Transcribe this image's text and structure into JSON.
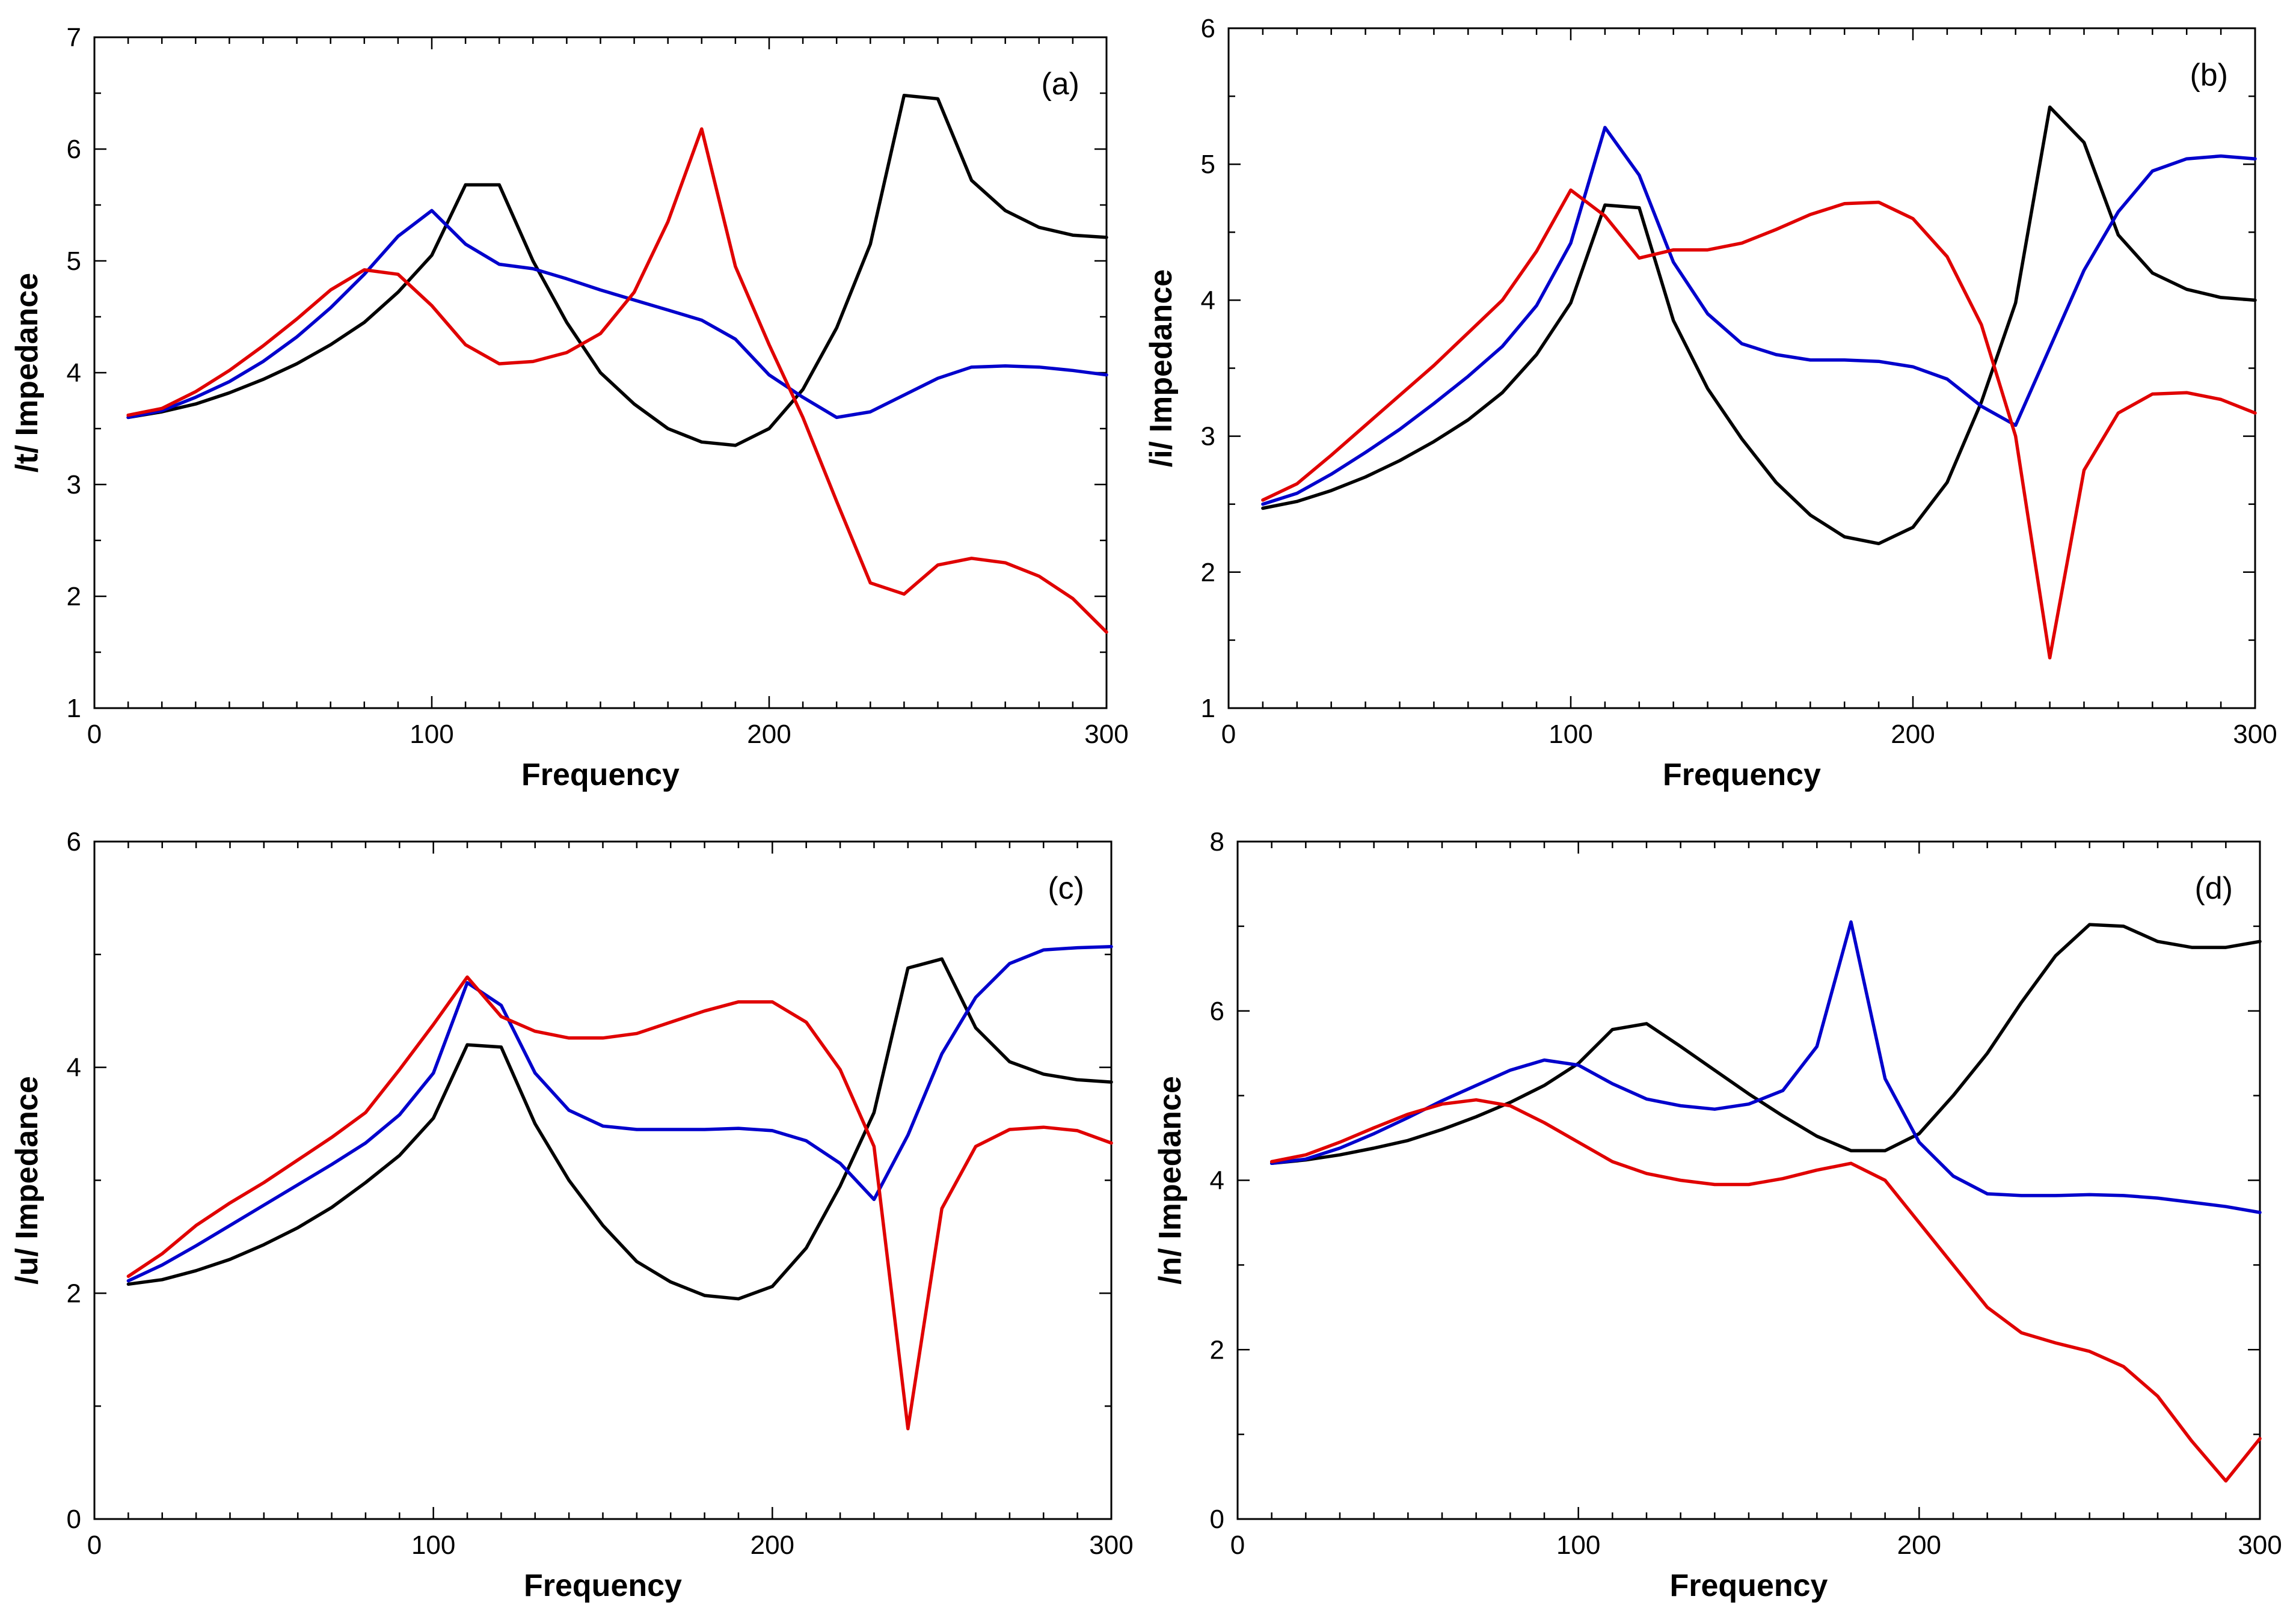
{
  "chart_data": [
    {
      "type": "line",
      "panel_label": "(a)",
      "xlabel": "Frequency",
      "ylabel": "/t/ Impedance",
      "xlim": [
        0,
        300
      ],
      "ylim": [
        1,
        7
      ],
      "xticks": [
        0,
        100,
        200,
        300
      ],
      "yticks": [
        1,
        2,
        3,
        4,
        5,
        6,
        7
      ],
      "x": [
        10,
        20,
        30,
        40,
        50,
        60,
        70,
        80,
        90,
        100,
        110,
        120,
        130,
        140,
        150,
        160,
        170,
        180,
        190,
        200,
        210,
        220,
        230,
        240,
        250,
        260,
        270,
        280,
        290,
        300
      ],
      "series": [
        {
          "name": "black",
          "color": "#000000",
          "values": [
            3.6,
            3.65,
            3.72,
            3.82,
            3.94,
            4.08,
            4.25,
            4.45,
            4.72,
            5.05,
            5.68,
            5.68,
            5.0,
            4.45,
            4.0,
            3.72,
            3.5,
            3.38,
            3.35,
            3.5,
            3.85,
            4.4,
            5.15,
            6.48,
            6.45,
            5.72,
            5.45,
            5.3,
            5.23,
            5.21
          ]
        },
        {
          "name": "blue",
          "color": "#0000CC",
          "values": [
            3.6,
            3.66,
            3.78,
            3.92,
            4.1,
            4.32,
            4.58,
            4.88,
            5.22,
            5.45,
            5.15,
            4.97,
            4.93,
            4.84,
            4.74,
            4.65,
            4.56,
            4.47,
            4.3,
            3.98,
            3.78,
            3.6,
            3.65,
            3.8,
            3.95,
            4.05,
            4.06,
            4.05,
            4.02,
            3.98
          ]
        },
        {
          "name": "red",
          "color": "#E00000",
          "values": [
            3.62,
            3.68,
            3.83,
            4.02,
            4.24,
            4.48,
            4.74,
            4.92,
            4.88,
            4.6,
            4.25,
            4.08,
            4.1,
            4.18,
            4.35,
            4.72,
            5.35,
            6.18,
            4.95,
            4.25,
            3.6,
            2.85,
            2.12,
            2.02,
            2.28,
            2.34,
            2.3,
            2.18,
            1.98,
            1.68
          ]
        }
      ]
    },
    {
      "type": "line",
      "panel_label": "(b)",
      "xlabel": "Frequency",
      "ylabel": "/i/ Impedance",
      "xlim": [
        0,
        300
      ],
      "ylim": [
        1,
        6
      ],
      "xticks": [
        0,
        100,
        200,
        300
      ],
      "yticks": [
        1,
        2,
        3,
        4,
        5,
        6
      ],
      "x": [
        10,
        20,
        30,
        40,
        50,
        60,
        70,
        80,
        90,
        100,
        110,
        120,
        130,
        140,
        150,
        160,
        170,
        180,
        190,
        200,
        210,
        220,
        230,
        240,
        250,
        260,
        270,
        280,
        290,
        300
      ],
      "series": [
        {
          "name": "black",
          "color": "#000000",
          "values": [
            2.47,
            2.52,
            2.6,
            2.7,
            2.82,
            2.96,
            3.12,
            3.32,
            3.6,
            3.98,
            4.7,
            4.68,
            3.85,
            3.35,
            2.98,
            2.66,
            2.42,
            2.26,
            2.21,
            2.33,
            2.66,
            3.25,
            3.98,
            5.42,
            5.16,
            4.48,
            4.2,
            4.08,
            4.02,
            4.0
          ]
        },
        {
          "name": "blue",
          "color": "#0000CC",
          "values": [
            2.5,
            2.58,
            2.72,
            2.88,
            3.05,
            3.24,
            3.44,
            3.66,
            3.96,
            4.42,
            5.27,
            4.92,
            4.28,
            3.9,
            3.68,
            3.6,
            3.56,
            3.56,
            3.55,
            3.51,
            3.42,
            3.22,
            3.08,
            3.65,
            4.22,
            4.65,
            4.95,
            5.04,
            5.06,
            5.04
          ]
        },
        {
          "name": "red",
          "color": "#E00000",
          "values": [
            2.53,
            2.65,
            2.86,
            3.08,
            3.3,
            3.52,
            3.76,
            4.0,
            4.36,
            4.81,
            4.62,
            4.31,
            4.37,
            4.37,
            4.42,
            4.52,
            4.63,
            4.71,
            4.72,
            4.6,
            4.32,
            3.82,
            3.0,
            1.37,
            2.75,
            3.17,
            3.31,
            3.32,
            3.27,
            3.17
          ]
        }
      ]
    },
    {
      "type": "line",
      "panel_label": "(c)",
      "xlabel": "Frequency",
      "ylabel": "/u/ Impedance",
      "xlim": [
        0,
        300
      ],
      "ylim": [
        0,
        6
      ],
      "xticks": [
        0,
        100,
        200,
        300
      ],
      "yticks": [
        0,
        2,
        4,
        6
      ],
      "x": [
        10,
        20,
        30,
        40,
        50,
        60,
        70,
        80,
        90,
        100,
        110,
        120,
        130,
        140,
        150,
        160,
        170,
        180,
        190,
        200,
        210,
        220,
        230,
        240,
        250,
        260,
        270,
        280,
        290,
        300
      ],
      "series": [
        {
          "name": "black",
          "color": "#000000",
          "values": [
            2.08,
            2.12,
            2.2,
            2.3,
            2.43,
            2.58,
            2.76,
            2.98,
            3.22,
            3.55,
            4.2,
            4.18,
            3.5,
            3.0,
            2.6,
            2.28,
            2.1,
            1.98,
            1.95,
            2.06,
            2.4,
            2.95,
            3.6,
            4.88,
            4.96,
            4.35,
            4.05,
            3.94,
            3.89,
            3.87
          ]
        },
        {
          "name": "blue",
          "color": "#0000CC",
          "values": [
            2.11,
            2.25,
            2.42,
            2.6,
            2.78,
            2.96,
            3.14,
            3.33,
            3.58,
            3.95,
            4.75,
            4.55,
            3.95,
            3.62,
            3.48,
            3.45,
            3.45,
            3.45,
            3.46,
            3.44,
            3.35,
            3.15,
            2.83,
            3.4,
            4.12,
            4.62,
            4.92,
            5.04,
            5.06,
            5.07
          ]
        },
        {
          "name": "red",
          "color": "#E00000",
          "values": [
            2.15,
            2.35,
            2.6,
            2.8,
            2.98,
            3.18,
            3.38,
            3.6,
            3.98,
            4.38,
            4.8,
            4.45,
            4.32,
            4.26,
            4.26,
            4.3,
            4.4,
            4.5,
            4.58,
            4.58,
            4.4,
            3.98,
            3.3,
            0.8,
            2.75,
            3.3,
            3.45,
            3.47,
            3.44,
            3.33
          ]
        }
      ]
    },
    {
      "type": "line",
      "panel_label": "(d)",
      "xlabel": "Frequency",
      "ylabel": "/n/ Impedance",
      "xlim": [
        0,
        300
      ],
      "ylim": [
        0,
        8
      ],
      "xticks": [
        0,
        100,
        200,
        300
      ],
      "yticks": [
        0,
        2,
        4,
        6,
        8
      ],
      "x": [
        10,
        20,
        30,
        40,
        50,
        60,
        70,
        80,
        90,
        100,
        110,
        120,
        130,
        140,
        150,
        160,
        170,
        180,
        190,
        200,
        210,
        220,
        230,
        240,
        250,
        260,
        270,
        280,
        290,
        300
      ],
      "series": [
        {
          "name": "black",
          "color": "#000000",
          "values": [
            4.2,
            4.24,
            4.3,
            4.38,
            4.47,
            4.6,
            4.75,
            4.92,
            5.12,
            5.38,
            5.78,
            5.85,
            5.58,
            5.3,
            5.02,
            4.76,
            4.52,
            4.35,
            4.35,
            4.55,
            5.0,
            5.5,
            6.1,
            6.65,
            7.02,
            7.0,
            6.82,
            6.75,
            6.75,
            6.82
          ]
        },
        {
          "name": "blue",
          "color": "#0000CC",
          "values": [
            4.2,
            4.25,
            4.38,
            4.55,
            4.74,
            4.94,
            5.12,
            5.3,
            5.42,
            5.36,
            5.14,
            4.96,
            4.88,
            4.84,
            4.9,
            5.06,
            5.58,
            7.05,
            5.2,
            4.45,
            4.05,
            3.84,
            3.82,
            3.82,
            3.83,
            3.82,
            3.79,
            3.74,
            3.69,
            3.62
          ]
        },
        {
          "name": "red",
          "color": "#E00000",
          "values": [
            4.22,
            4.3,
            4.45,
            4.62,
            4.78,
            4.9,
            4.95,
            4.88,
            4.68,
            4.45,
            4.22,
            4.08,
            4.0,
            3.95,
            3.95,
            4.02,
            4.12,
            4.2,
            4.0,
            3.5,
            3.0,
            2.5,
            2.2,
            2.08,
            1.98,
            1.8,
            1.45,
            0.92,
            0.45,
            0.95
          ]
        }
      ]
    }
  ]
}
